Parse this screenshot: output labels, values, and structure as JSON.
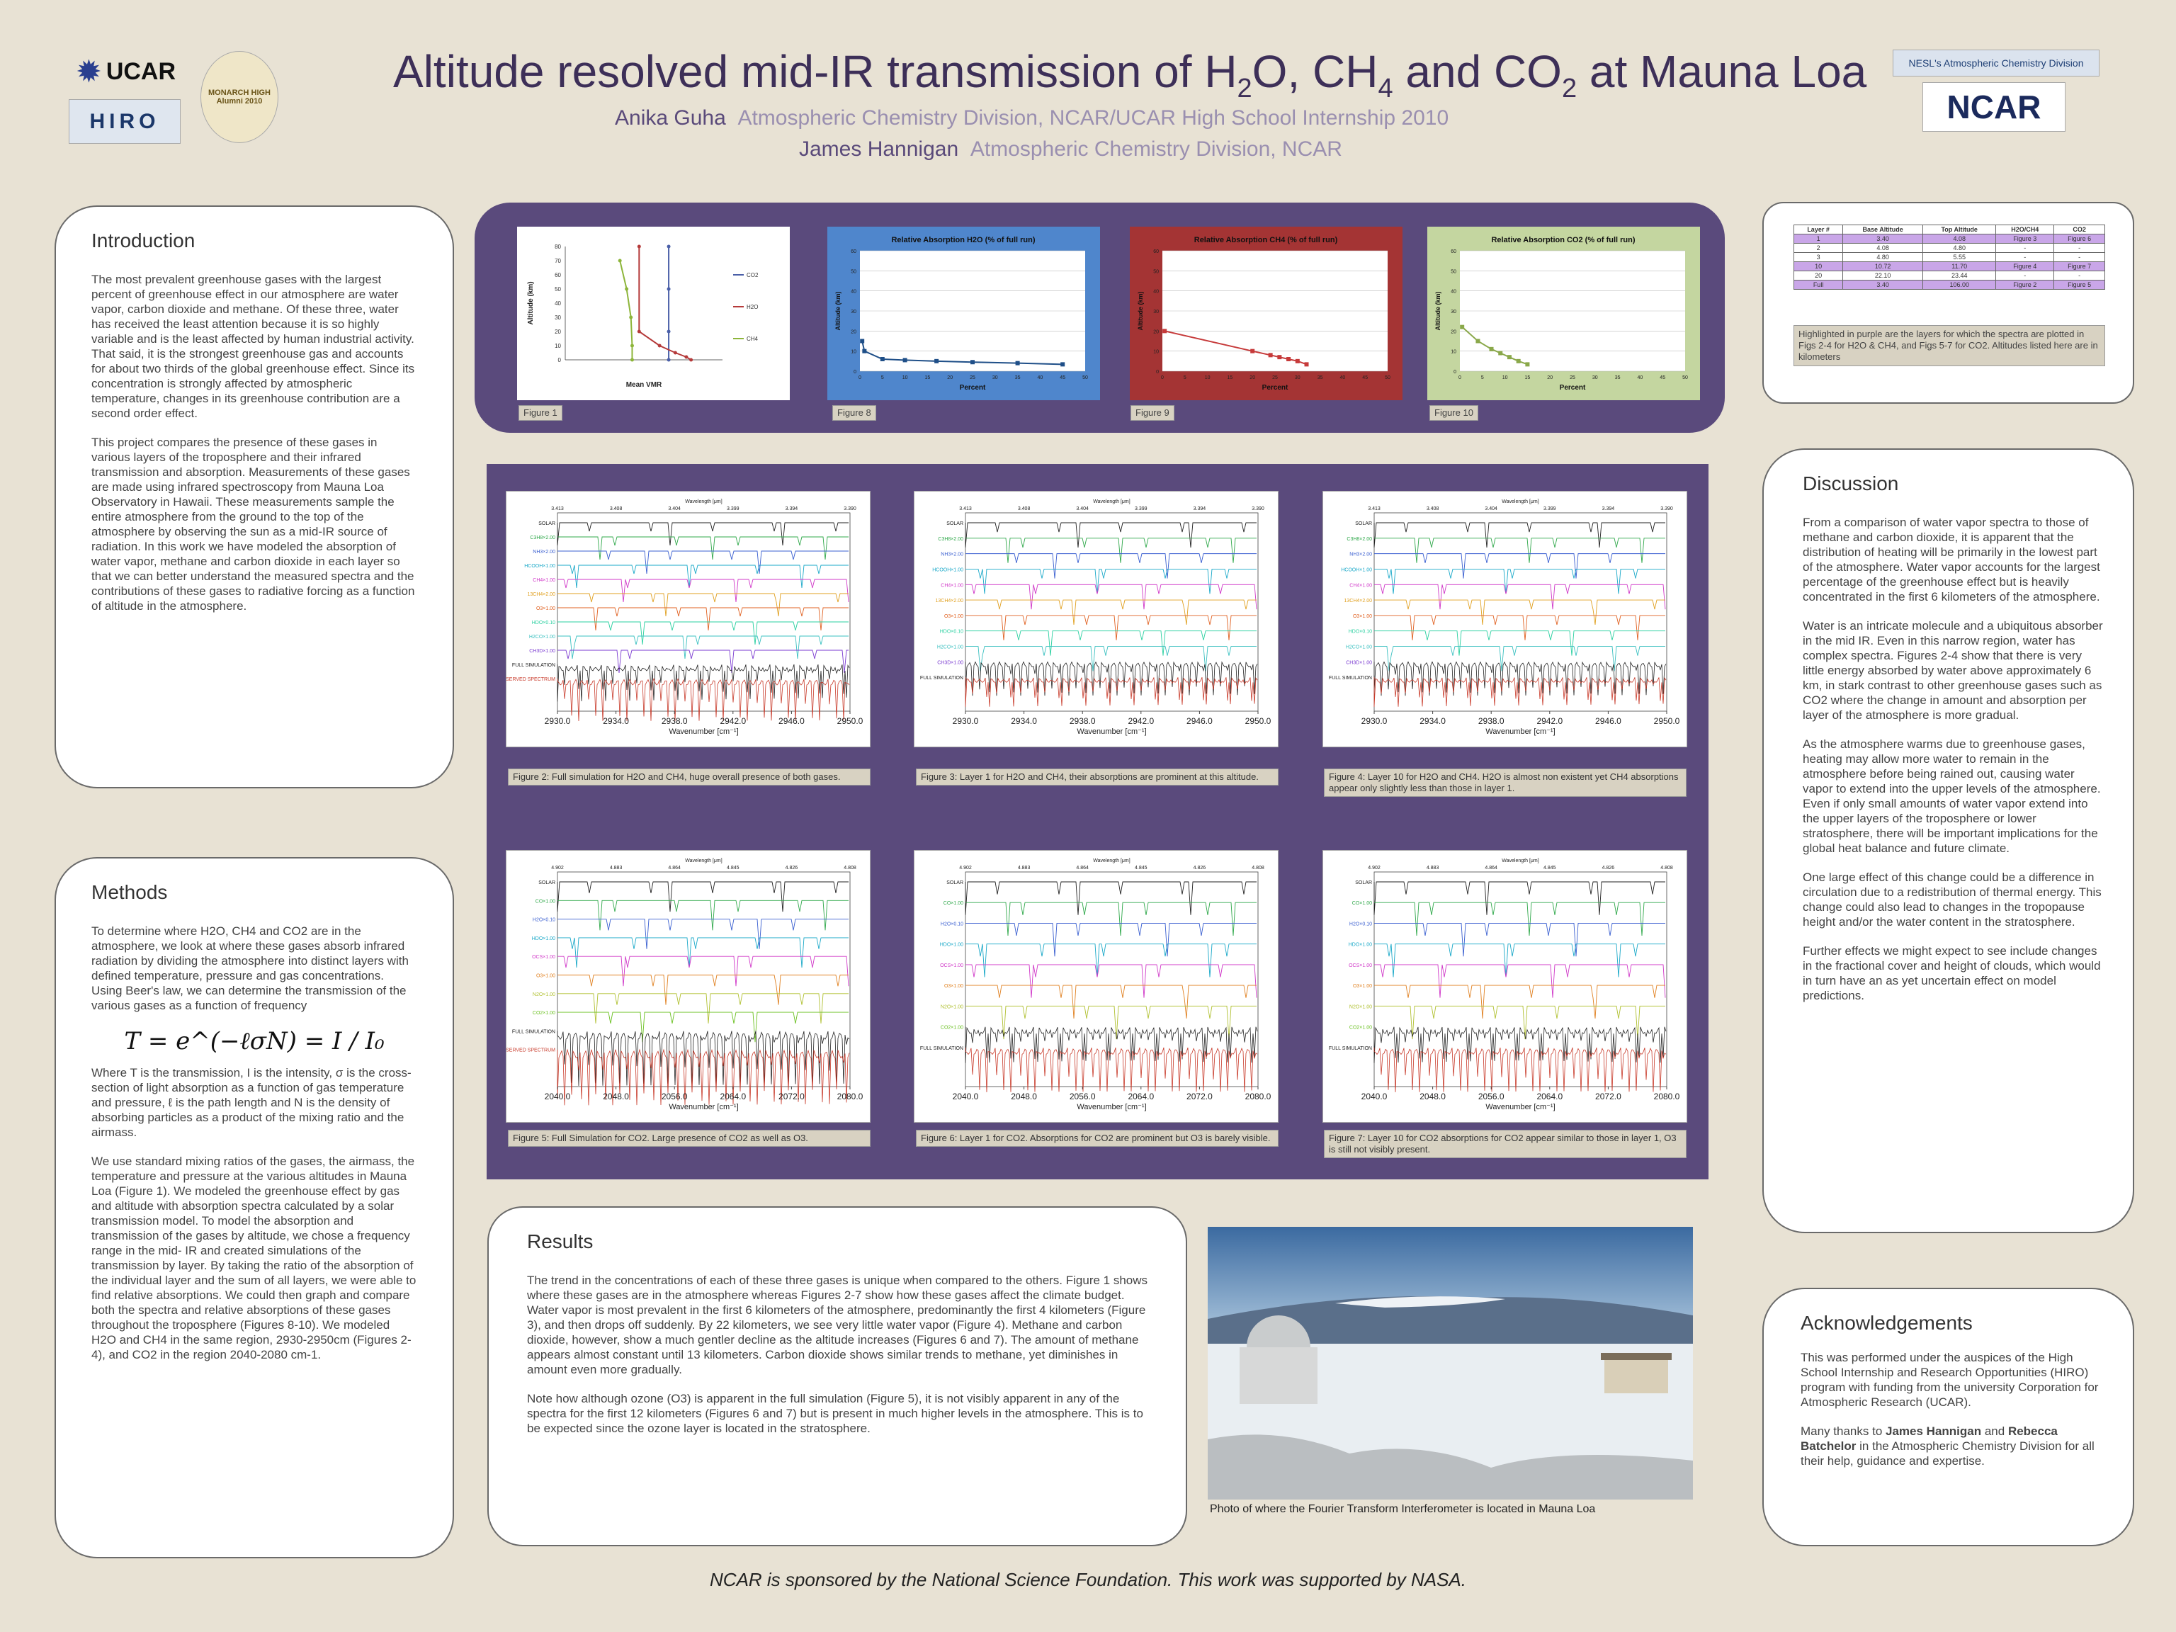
{
  "header": {
    "title_pre": "Altitude resolved mid-IR transmission of H",
    "title_sub1": "2",
    "title_mid1": "O, CH",
    "title_sub2": "4",
    "title_mid2": " and CO",
    "title_sub3": "2",
    "title_post": " at Mauna Loa",
    "author1_name": "Anika Guha",
    "author1_aff": "Atmospheric Chemistry Division, NCAR/UCAR High School Internship 2010",
    "author2_name": "James Hannigan",
    "author2_aff": "Atmospheric Chemistry Division, NCAR",
    "logos": {
      "ucar": "UCAR",
      "hiro": "HIRO",
      "monarch": "MONARCH HIGH Alumni 2010",
      "acd": "NESL's Atmospheric Chemistry Division",
      "ncar": "NCAR"
    }
  },
  "introduction": {
    "heading": "Introduction",
    "p1": "The most prevalent greenhouse gases with the largest percent of greenhouse effect in our atmosphere are water vapor, carbon dioxide and methane. Of these three, water has received the least attention because it is so highly variable and is the least affected by human industrial activity. That said, it is the strongest greenhouse gas and accounts for about two thirds of the global greenhouse effect. Since its concentration is strongly affected by atmospheric temperature, changes in its greenhouse contribution are a second order effect.",
    "p2": "This project compares the presence of these gases in various layers of the troposphere and their infrared transmission and absorption. Measurements of these gases are made using infrared spectroscopy from Mauna Loa Observatory in Hawaii. These measurements sample the entire atmosphere from the ground to the top of the atmosphere by observing the sun as a mid-IR source of radiation. In this work we have modeled the absorption of water vapor, methane and carbon dioxide in each layer so that we can better understand the measured spectra and the contributions of these gases to radiative forcing as a function of altitude in the atmosphere."
  },
  "methods": {
    "heading": "Methods",
    "p1": "To determine where H2O, CH4 and CO2 are in the atmosphere, we look at where these gases absorb infrared radiation by dividing the atmosphere into distinct layers with defined temperature, pressure and gas concentrations. Using Beer's law, we can determine the transmission of the various gases as a function of frequency",
    "equation": "T = e^(−ℓσN) = I / I₀",
    "p2": "Where T is the transmission, I is the intensity, σ is the cross-section of light absorption as a function of gas temperature and pressure, ℓ is the path length and N is the density of absorbing particles as a product of the mixing ratio and the airmass.",
    "p3": "We use standard mixing ratios of the gases, the airmass, the temperature and pressure at the various altitudes in Mauna Loa (Figure 1). We modeled the greenhouse effect by gas and altitude with absorption spectra calculated by a solar transmission model. To model the absorption and transmission of the gases by altitude, we chose a frequency range in the mid- IR and created simulations of the transmission by layer. By taking the ratio of the absorption of the individual layer and the sum of all layers, we were able to find relative absorptions. We could then graph and compare both the spectra and relative absorptions of these gases throughout the troposphere (Figures 8-10). We modeled H2O and CH4 in the same region, 2930-2950cm (Figures 2-4), and CO2 in the region 2040-2080 cm-1."
  },
  "top_charts": {
    "fig1_label": "Figure 1",
    "fig8_label": "Figure 8",
    "fig9_label": "Figure 9",
    "fig10_label": "Figure 10",
    "fig1_xlabel": "Mean VMR",
    "fig1_ylabel": "Altitude (km)",
    "fig8_title": "Relative Absorption H2O (% of full run)",
    "fig9_title": "Relative Absorption CH4 (% of full run)",
    "fig10_title": "Relative Absorption CO2 (% of full run)",
    "pct_xlabel": "Percent",
    "pct_ylabel": "Altitude (km)",
    "legend": [
      "CO2",
      "H2O",
      "CH4"
    ]
  },
  "chart_data": [
    {
      "type": "line",
      "title": "",
      "xlabel": "Mean VMR",
      "ylabel": "Altitude (km)",
      "xscale": "log",
      "xlim": [
        1e-10,
        1.0
      ],
      "ylim": [
        0,
        80
      ],
      "series": [
        {
          "name": "CO2",
          "x": [
            0.00038,
            0.00038,
            0.00038,
            0.00038
          ],
          "y": [
            0,
            20,
            50,
            80
          ]
        },
        {
          "name": "H2O",
          "x": [
            0.01,
            0.005,
            0.001,
            0.0001,
            5e-06,
            5e-06
          ],
          "y": [
            0,
            2,
            5,
            10,
            20,
            80
          ]
        },
        {
          "name": "CH4",
          "x": [
            1.8e-06,
            1.8e-06,
            1.5e-06,
            8e-07,
            3e-07
          ],
          "y": [
            0,
            10,
            30,
            50,
            70
          ]
        }
      ]
    },
    {
      "type": "line",
      "title": "Relative Absorption H2O (% of full run)",
      "xlabel": "Percent",
      "ylabel": "Altitude (km)",
      "xlim": [
        0,
        50
      ],
      "ylim": [
        0,
        60
      ],
      "series": [
        {
          "name": "",
          "x": [
            45,
            35,
            25,
            17,
            10,
            5,
            1,
            0.5
          ],
          "y": [
            3.4,
            4,
            4.5,
            5,
            5.5,
            6,
            10,
            15
          ]
        }
      ]
    },
    {
      "type": "line",
      "title": "Relative Absorption CH4 (% of full run)",
      "xlabel": "Percent",
      "ylabel": "Altitude (km)",
      "xlim": [
        0,
        50
      ],
      "ylim": [
        0,
        60
      ],
      "series": [
        {
          "name": "",
          "x": [
            32,
            30,
            28,
            26,
            24,
            20,
            0.5
          ],
          "y": [
            3.4,
            5,
            6,
            7,
            8,
            10,
            20
          ]
        }
      ]
    },
    {
      "type": "line",
      "title": "Relative Absorption CO2 (% of full run)",
      "xlabel": "Percent",
      "ylabel": "Altitude (km)",
      "xlim": [
        0,
        50
      ],
      "ylim": [
        0,
        60
      ],
      "series": [
        {
          "name": "",
          "x": [
            15,
            13,
            11,
            9,
            7,
            4,
            0.5
          ],
          "y": [
            3.4,
            5,
            7,
            9,
            11,
            15,
            22
          ]
        }
      ]
    }
  ],
  "layer_table": {
    "headers": [
      "Layer #",
      "Base Altitude",
      "Top Altitude",
      "H2O/CH4",
      "CO2"
    ],
    "rows": [
      {
        "hl": true,
        "cells": [
          "1",
          "3.40",
          "4.08",
          "Figure 3",
          "Figure 6"
        ]
      },
      {
        "hl": false,
        "cells": [
          "2",
          "4.08",
          "4.80",
          "-",
          "-"
        ]
      },
      {
        "hl": false,
        "cells": [
          "3",
          "4.80",
          "5.55",
          "-",
          "-"
        ]
      },
      {
        "hl": true,
        "cells": [
          "10",
          "10.72",
          "11.70",
          "Figure 4",
          "Figure 7"
        ]
      },
      {
        "hl": false,
        "cells": [
          "20",
          "22.10",
          "23.44",
          "-",
          "-"
        ]
      },
      {
        "hl": true,
        "cells": [
          "Full",
          "3.40",
          "106.00",
          "Figure 2",
          "Figure 5"
        ]
      }
    ],
    "note": "Highlighted in purple are the layers for which the spectra are plotted in Figs 2-4 for H2O & CH4, and Figs 5-7 for CO2. Altitudes listed here are in kilometers"
  },
  "spectra": {
    "wavenumber_label": "Wavenumber [cm⁻¹]",
    "wavelength_label": "Wavelength [μm]",
    "top_ticks": [
      "2930.0",
      "2934.0",
      "2938.0",
      "2942.0",
      "2946.0",
      "2950.0"
    ],
    "bottom_ticks": [
      "2040.0",
      "2048.0",
      "2056.0",
      "2064.0",
      "2072.0",
      "2080.0"
    ],
    "top_wl": [
      "3.413",
      "3.408",
      "3.404",
      "3.399",
      "3.394",
      "3.390"
    ],
    "bottom_wl": [
      "4.902",
      "4.883",
      "4.864",
      "4.845",
      "4.826",
      "4.808"
    ],
    "fig2_cap": "Figure 2: Full simulation for H2O and CH4, huge overall presence of both gases.",
    "fig3_cap": "Figure 3: Layer 1 for H2O and CH4, their absorptions are prominent at this altitude.",
    "fig4_cap": "Figure 4: Layer 10 for H2O and CH4. H2O is almost non existent yet CH4 absorptions appear only slightly less than those in layer 1.",
    "fig5_cap": "Figure 5: Full Simulation for CO2. Large presence of CO2 as well as O3.",
    "fig6_cap": "Figure 6: Layer 1 for CO2. Absorptions for CO2 are prominent but O3 is barely visible.",
    "fig7_cap": "Figure 7: Layer 10 for CO2 absorptions for CO2 appear similar to those in layer 1, O3 is still not visibly present.",
    "top_labels": [
      "SOLAR",
      "C3H8×2.00",
      "NH3×2.00",
      "HCOOH×1.00",
      "CH4×1.00",
      "13CH4×2.00",
      "O3×1.00",
      "HDO×0.10",
      "H2CO×1.00",
      "CH3D×1.00",
      "FULL SIMULATION",
      "OBSERVED SPECTRUM"
    ],
    "bottom_labels": [
      "SOLAR",
      "CO×1.00",
      "H2O×0.10",
      "HDO×1.00",
      "OCS×1.00",
      "O3×1.00",
      "N2O×1.00",
      "CO2×1.00",
      "FULL SIMULATION",
      "OBSERVED SPECTRUM"
    ]
  },
  "results": {
    "heading": "Results",
    "p1": "The trend in the concentrations of each of these three gases is unique when compared to the others. Figure 1 shows where these gases are in the atmosphere whereas Figures 2-7 show how these gases affect the climate budget. Water vapor is most prevalent in the first 6 kilometers of the atmosphere, predominantly the first 4 kilometers (Figure 3), and then drops off suddenly. By 22 kilometers, we see very little water vapor (Figure 4). Methane and carbon dioxide, however, show a much gentler decline as the altitude increases (Figures 6 and 7). The amount of methane appears almost constant until 13 kilometers. Carbon dioxide shows similar trends to methane, yet diminishes in amount even more gradually.",
    "p2": "Note how although ozone (O3) is apparent in the full simulation (Figure 5), it is not visibly apparent in any of the spectra for the first 12 kilometers (Figures 6 and 7) but is present in much higher levels in the atmosphere. This is to be expected since the ozone layer is located in the stratosphere."
  },
  "photo": {
    "caption": "Photo of where the Fourier Transform Interferometer is located in Mauna Loa"
  },
  "discussion": {
    "heading": "Discussion",
    "p1": "From a comparison of water vapor spectra to those of methane and carbon dioxide, it is apparent that the distribution of heating will be primarily in the lowest part of the atmosphere. Water vapor accounts for the largest percentage of the greenhouse effect but is heavily concentrated in the first 6 kilometers of the atmosphere.",
    "p2": "Water is an intricate molecule and a ubiquitous absorber in the mid IR. Even in this narrow region, water has complex spectra. Figures 2-4 show that there is very little energy absorbed by water above approximately 6 km, in stark contrast to other greenhouse gases such as CO2 where the change in amount and absorption per layer of the atmosphere is more gradual.",
    "p3": "As the atmosphere warms due to greenhouse gases, heating may allow more water to remain in the atmosphere before being rained out, causing water vapor to extend into the upper levels of the atmosphere. Even if only small amounts of water vapor extend into the upper layers of the troposphere or lower stratosphere, there will be important implications for the global heat balance and future climate.",
    "p4": "One large effect of this change could be a difference in circulation due to a redistribution of thermal energy. This change could also lead to changes in the tropopause height and/or the water content in the stratosphere.",
    "p5": "Further effects we might expect to see include changes in the fractional cover and height of clouds, which would in turn have an as yet uncertain effect on model predictions."
  },
  "acknowledgements": {
    "heading": "Acknowledgements",
    "p1": "This was performed under the auspices of the High School Internship and Research Opportunities (HIRO) program with funding from the university Corporation for Atmospheric Research (UCAR).",
    "p2_pre": "Many thanks to ",
    "p2_name1": "James Hannigan",
    "p2_mid": " and ",
    "p2_name2": "Rebecca Batchelor",
    "p2_post": " in the Atmospheric Chemistry Division for all their help, guidance and expertise."
  },
  "footer": {
    "text": "NCAR is sponsored by the National Science Foundation. This work was supported by NASA."
  }
}
